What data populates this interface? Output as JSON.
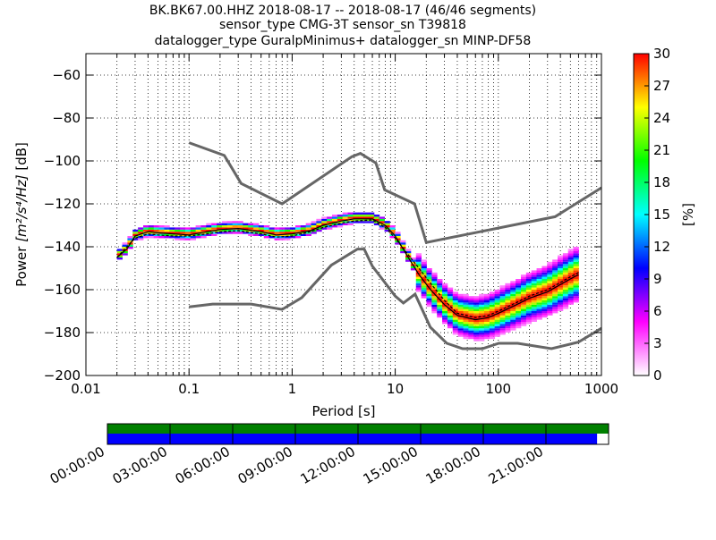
{
  "title_lines": [
    "BK.BK67.00.HHZ   2018-08-17 -- 2018-08-17  (46/46 segments)",
    "sensor_type CMG-3T sensor_sn T39818",
    "datalogger_type GuralpMinimus+ datalogger_sn MINP-DF58"
  ],
  "chart_data": {
    "type": "heatmap",
    "subtype": "probabilistic-power-spectral-density",
    "xlabel": "Period [s]",
    "ylabel_prefix": "Power ",
    "ylabel_math": "[m²/s⁴/Hz]",
    "ylabel_suffix": " [dB]",
    "xscale": "log",
    "xlim": [
      0.01,
      1000
    ],
    "ylim": [
      -200,
      -50
    ],
    "x_ticks": [
      {
        "value": 0.01,
        "label": "0.01"
      },
      {
        "value": 0.1,
        "label": "0.1"
      },
      {
        "value": 1,
        "label": "1"
      },
      {
        "value": 10,
        "label": "10"
      },
      {
        "value": 100,
        "label": "100"
      },
      {
        "value": 1000,
        "label": "1000"
      }
    ],
    "y_ticks": [
      {
        "value": -60,
        "label": "−60"
      },
      {
        "value": -80,
        "label": "−80"
      },
      {
        "value": -100,
        "label": "−100"
      },
      {
        "value": -120,
        "label": "−120"
      },
      {
        "value": -140,
        "label": "−140"
      },
      {
        "value": -160,
        "label": "−160"
      },
      {
        "value": -180,
        "label": "−180"
      },
      {
        "value": -200,
        "label": "−200"
      }
    ],
    "grid": "dotted",
    "colorbar": {
      "label": "[%]",
      "range": [
        0,
        30
      ],
      "ticks": [
        {
          "value": 0,
          "label": "0"
        },
        {
          "value": 3,
          "label": "3"
        },
        {
          "value": 6,
          "label": "6"
        },
        {
          "value": 9,
          "label": "9"
        },
        {
          "value": 12,
          "label": "12"
        },
        {
          "value": 15,
          "label": "15"
        },
        {
          "value": 18,
          "label": "18"
        },
        {
          "value": 21,
          "label": "21"
        },
        {
          "value": 24,
          "label": "24"
        },
        {
          "value": 27,
          "label": "27"
        },
        {
          "value": 30,
          "label": "30"
        }
      ],
      "colors": [
        "#ffffff",
        "#ff00ff",
        "#0000ff",
        "#00ffff",
        "#00ff00",
        "#ffff00",
        "#ff0000"
      ]
    },
    "high_noise_model": [
      [
        0.1,
        -91.5
      ],
      [
        0.22,
        -97.4
      ],
      [
        0.32,
        -110.5
      ],
      [
        0.8,
        -120
      ],
      [
        3.8,
        -98
      ],
      [
        4.6,
        -96.5
      ],
      [
        6.5,
        -101
      ],
      [
        7.9,
        -113.5
      ],
      [
        15.4,
        -120
      ],
      [
        20,
        -138
      ],
      [
        354.8,
        -126
      ],
      [
        1000,
        -112.5
      ]
    ],
    "low_noise_model": [
      [
        0.1,
        -168
      ],
      [
        0.17,
        -166.7
      ],
      [
        0.4,
        -166.7
      ],
      [
        0.8,
        -169.2
      ],
      [
        1.24,
        -163.7
      ],
      [
        2.4,
        -148.6
      ],
      [
        4.3,
        -141.1
      ],
      [
        5,
        -141.1
      ],
      [
        6,
        -149
      ],
      [
        10,
        -163
      ],
      [
        12,
        -166.2
      ],
      [
        15.6,
        -162.1
      ],
      [
        21.9,
        -177.5
      ],
      [
        31.6,
        -185
      ],
      [
        45,
        -187.5
      ],
      [
        70,
        -187.5
      ],
      [
        101,
        -185
      ],
      [
        154,
        -185
      ],
      [
        328,
        -187.5
      ],
      [
        600,
        -184.4
      ],
      [
        1000,
        -178
      ]
    ],
    "mean": [
      [
        0.02,
        -145
      ],
      [
        0.025,
        -140
      ],
      [
        0.03,
        -136
      ],
      [
        0.04,
        -134
      ],
      [
        0.05,
        -134.5
      ],
      [
        0.07,
        -135
      ],
      [
        0.1,
        -135
      ],
      [
        0.15,
        -134
      ],
      [
        0.2,
        -133
      ],
      [
        0.3,
        -132.5
      ],
      [
        0.5,
        -134
      ],
      [
        0.7,
        -135.5
      ],
      [
        1,
        -135
      ],
      [
        1.5,
        -133
      ],
      [
        2,
        -131
      ],
      [
        3,
        -129
      ],
      [
        4,
        -128
      ],
      [
        6,
        -127.5
      ],
      [
        8,
        -131
      ],
      [
        10,
        -136
      ],
      [
        13,
        -143
      ],
      [
        17,
        -150
      ],
      [
        22,
        -157
      ],
      [
        30,
        -165
      ],
      [
        40,
        -171
      ],
      [
        60,
        -173
      ],
      [
        80,
        -172
      ],
      [
        100,
        -170
      ],
      [
        150,
        -166
      ],
      [
        200,
        -163
      ],
      [
        300,
        -160
      ],
      [
        500,
        -154
      ],
      [
        600,
        -152
      ]
    ],
    "mode": [
      [
        0.02,
        -145
      ],
      [
        0.025,
        -141
      ],
      [
        0.03,
        -135
      ],
      [
        0.04,
        -133
      ],
      [
        0.05,
        -133.5
      ],
      [
        0.07,
        -134
      ],
      [
        0.1,
        -134.5
      ],
      [
        0.15,
        -133
      ],
      [
        0.2,
        -132
      ],
      [
        0.3,
        -131.5
      ],
      [
        0.5,
        -133
      ],
      [
        0.7,
        -134.5
      ],
      [
        1,
        -134
      ],
      [
        1.5,
        -132.5
      ],
      [
        2,
        -130
      ],
      [
        3,
        -128
      ],
      [
        4,
        -127
      ],
      [
        6,
        -127
      ],
      [
        8,
        -130
      ],
      [
        10,
        -135
      ],
      [
        13,
        -144
      ],
      [
        17,
        -153
      ],
      [
        22,
        -160
      ],
      [
        30,
        -167
      ],
      [
        40,
        -172
      ],
      [
        60,
        -174
      ],
      [
        80,
        -173
      ],
      [
        100,
        -171
      ],
      [
        150,
        -167
      ],
      [
        200,
        -164
      ],
      [
        300,
        -161
      ],
      [
        500,
        -155
      ],
      [
        600,
        -153
      ]
    ],
    "timeline": {
      "ticks": [
        "00:00:00",
        "03:00:00",
        "06:00:00",
        "09:00:00",
        "12:00:00",
        "15:00:00",
        "18:00:00",
        "21:00:00"
      ],
      "data_coverage_fraction": 1.0,
      "processed_coverage_fraction": 0.977,
      "data_color": "#008000",
      "processed_color": "#0000ff"
    }
  }
}
